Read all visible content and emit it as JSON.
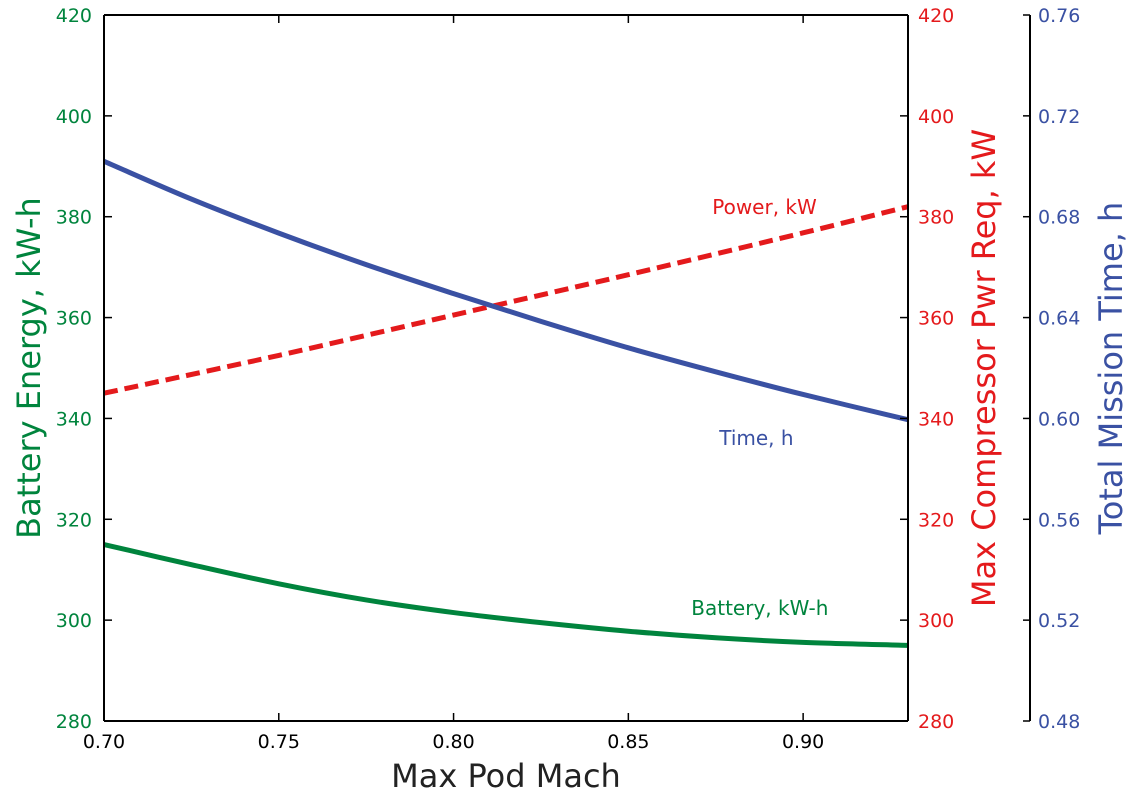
{
  "chart_data": {
    "type": "line",
    "xlabel": "Max Pod Mach",
    "xlim": [
      0.7,
      0.93
    ],
    "xticks": [
      0.7,
      0.75,
      0.8,
      0.85,
      0.9
    ],
    "axes": [
      {
        "id": "battery",
        "label": "Battery Energy, kW-h",
        "side": "left",
        "color": "#00843d",
        "ylim": [
          280,
          420
        ],
        "ticks": [
          280,
          300,
          320,
          340,
          360,
          380,
          400,
          420
        ]
      },
      {
        "id": "power",
        "label": "Max Compressor Pwr Req, kW",
        "side": "right",
        "color": "#e41a1c",
        "ylim": [
          280,
          420
        ],
        "ticks": [
          280,
          300,
          320,
          340,
          360,
          380,
          400,
          420
        ]
      },
      {
        "id": "time",
        "label": "Total Mission Time, h",
        "side": "right-offset",
        "color": "#3a51a3",
        "ylim": [
          0.48,
          0.76
        ],
        "ticks": [
          0.48,
          0.52,
          0.56,
          0.6,
          0.64,
          0.68,
          0.72,
          0.76
        ]
      }
    ],
    "series": [
      {
        "name": "Battery, kW-h",
        "axis": "battery",
        "style": "solid",
        "color": "#00843d",
        "x": [
          0.7,
          0.725,
          0.75,
          0.775,
          0.8,
          0.825,
          0.85,
          0.875,
          0.9,
          0.93
        ],
        "y": [
          315,
          311,
          307.2,
          304,
          301.5,
          299.5,
          297.8,
          296.5,
          295.6,
          295
        ]
      },
      {
        "name": "Power, kW",
        "axis": "power",
        "style": "dashed",
        "color": "#e41a1c",
        "x": [
          0.7,
          0.75,
          0.8,
          0.85,
          0.9,
          0.93
        ],
        "y": [
          345,
          352.5,
          360.5,
          368.5,
          376.8,
          382
        ]
      },
      {
        "name": "Time, h",
        "axis": "time",
        "style": "solid",
        "color": "#3a51a3",
        "x": [
          0.7,
          0.725,
          0.75,
          0.775,
          0.8,
          0.825,
          0.85,
          0.875,
          0.9,
          0.93
        ],
        "y": [
          0.702,
          0.687,
          0.6735,
          0.661,
          0.6495,
          0.6385,
          0.628,
          0.6185,
          0.6095,
          0.5995
        ]
      }
    ],
    "annotations": [
      {
        "text": "Power, kW",
        "series": "Power, kW",
        "x": 0.874,
        "y": 380.5,
        "axis": "power"
      },
      {
        "text": "Time, h",
        "series": "Time, h",
        "x": 0.876,
        "y": 0.5895,
        "axis": "time"
      },
      {
        "text": "Battery, kW-h",
        "series": "Battery, kW-h",
        "x": 0.868,
        "y": 301,
        "axis": "battery"
      }
    ]
  }
}
